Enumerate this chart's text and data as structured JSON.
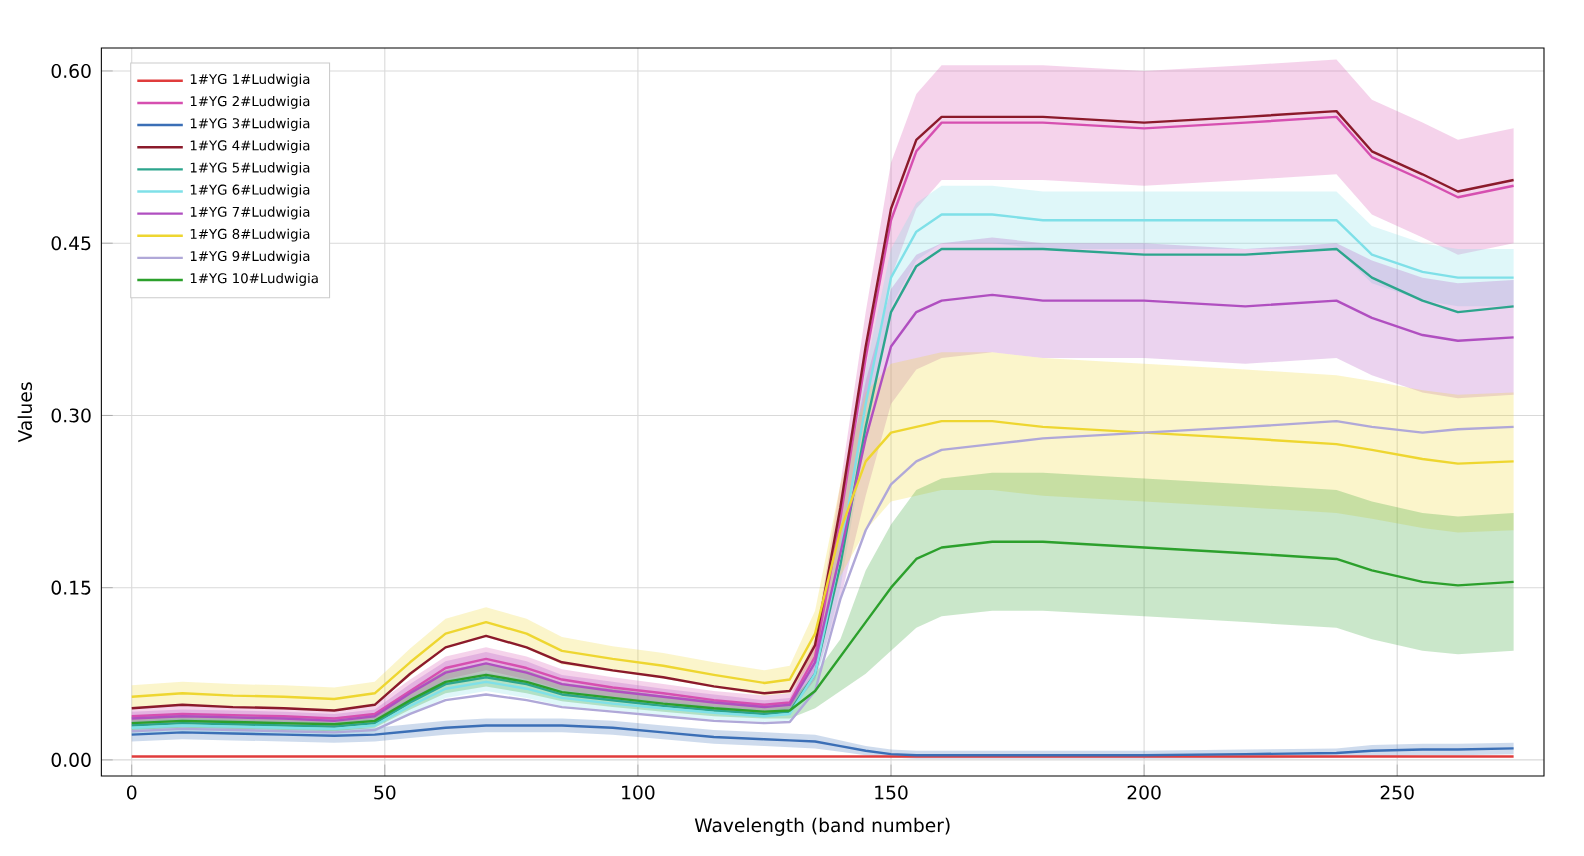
{
  "chart_data": {
    "type": "line",
    "xlabel": "Wavelength (band number)",
    "ylabel": "Values",
    "x": [
      0,
      10,
      20,
      30,
      40,
      48,
      55,
      62,
      70,
      78,
      85,
      95,
      105,
      115,
      125,
      130,
      135,
      140,
      145,
      150,
      155,
      160,
      170,
      180,
      200,
      220,
      238,
      245,
      255,
      262,
      273
    ],
    "xlim": [
      -6,
      279
    ],
    "ylim": [
      -0.014,
      0.62
    ],
    "xticks": [
      0,
      50,
      100,
      150,
      200,
      250
    ],
    "yticks": [
      {
        "value": 0,
        "label": "0.00"
      },
      {
        "value": 0.15,
        "label": "0.15"
      },
      {
        "value": 0.3,
        "label": "0.30"
      },
      {
        "value": 0.45,
        "label": "0.45"
      },
      {
        "value": 0.6,
        "label": "0.60"
      }
    ],
    "grid": true,
    "legend": "top left",
    "line_style": "solid",
    "marker": "none",
    "series": [
      {
        "name": "1#YG 1#Ludwigia",
        "color": "#e03c3c",
        "values": [
          0.003,
          0.003,
          0.003,
          0.003,
          0.003,
          0.003,
          0.003,
          0.003,
          0.003,
          0.003,
          0.003,
          0.003,
          0.003,
          0.003,
          0.003,
          0.003,
          0.003,
          0.003,
          0.003,
          0.003,
          0.003,
          0.003,
          0.003,
          0.003,
          0.003,
          0.003,
          0.003,
          0.003,
          0.003,
          0.003,
          0.003
        ]
      },
      {
        "name": "1#YG 2#Ludwigia",
        "color": "#d64fb0",
        "values": [
          0.038,
          0.04,
          0.039,
          0.038,
          0.036,
          0.04,
          0.06,
          0.08,
          0.088,
          0.08,
          0.07,
          0.063,
          0.058,
          0.052,
          0.048,
          0.05,
          0.09,
          0.21,
          0.35,
          0.47,
          0.53,
          0.555,
          0.555,
          0.555,
          0.55,
          0.555,
          0.56,
          0.525,
          0.505,
          0.49,
          0.5
        ],
        "lower": [
          0.03,
          0.032,
          0.031,
          0.03,
          0.028,
          0.032,
          0.05,
          0.07,
          0.078,
          0.07,
          0.061,
          0.054,
          0.05,
          0.044,
          0.04,
          0.042,
          0.075,
          0.18,
          0.31,
          0.42,
          0.48,
          0.505,
          0.505,
          0.505,
          0.5,
          0.505,
          0.51,
          0.475,
          0.455,
          0.44,
          0.45
        ],
        "upper": [
          0.046,
          0.048,
          0.047,
          0.046,
          0.044,
          0.048,
          0.07,
          0.09,
          0.098,
          0.09,
          0.079,
          0.072,
          0.066,
          0.06,
          0.056,
          0.058,
          0.105,
          0.24,
          0.39,
          0.52,
          0.58,
          0.605,
          0.605,
          0.605,
          0.6,
          0.605,
          0.61,
          0.575,
          0.555,
          0.54,
          0.55
        ]
      },
      {
        "name": "1#YG 3#Ludwigia",
        "color": "#3b6fb6",
        "values": [
          0.022,
          0.024,
          0.023,
          0.022,
          0.021,
          0.022,
          0.025,
          0.028,
          0.03,
          0.03,
          0.03,
          0.028,
          0.024,
          0.02,
          0.018,
          0.017,
          0.016,
          0.012,
          0.008,
          0.005,
          0.004,
          0.004,
          0.004,
          0.004,
          0.004,
          0.005,
          0.006,
          0.008,
          0.009,
          0.009,
          0.01
        ],
        "lower": [
          0.016,
          0.018,
          0.017,
          0.016,
          0.015,
          0.016,
          0.019,
          0.022,
          0.024,
          0.024,
          0.024,
          0.022,
          0.018,
          0.014,
          0.012,
          0.011,
          0.01,
          0.007,
          0.004,
          0.002,
          0.001,
          0.001,
          0.001,
          0.001,
          0.001,
          0.001,
          0.002,
          0.003,
          0.004,
          0.004,
          0.005
        ],
        "upper": [
          0.028,
          0.03,
          0.029,
          0.028,
          0.027,
          0.028,
          0.031,
          0.034,
          0.036,
          0.036,
          0.036,
          0.034,
          0.03,
          0.026,
          0.024,
          0.023,
          0.022,
          0.017,
          0.012,
          0.009,
          0.008,
          0.008,
          0.008,
          0.008,
          0.008,
          0.009,
          0.01,
          0.013,
          0.014,
          0.014,
          0.015
        ]
      },
      {
        "name": "1#YG 4#Ludwigia",
        "color": "#8b1a2b",
        "values": [
          0.045,
          0.048,
          0.046,
          0.045,
          0.043,
          0.048,
          0.075,
          0.098,
          0.108,
          0.098,
          0.085,
          0.078,
          0.072,
          0.064,
          0.058,
          0.06,
          0.1,
          0.22,
          0.36,
          0.48,
          0.54,
          0.56,
          0.56,
          0.56,
          0.555,
          0.56,
          0.565,
          0.53,
          0.51,
          0.495,
          0.505
        ]
      },
      {
        "name": "1#YG 5#Ludwigia",
        "color": "#2ca58d",
        "values": [
          0.03,
          0.032,
          0.031,
          0.03,
          0.029,
          0.032,
          0.05,
          0.066,
          0.072,
          0.066,
          0.057,
          0.052,
          0.047,
          0.043,
          0.04,
          0.042,
          0.075,
          0.17,
          0.29,
          0.39,
          0.43,
          0.445,
          0.445,
          0.445,
          0.44,
          0.44,
          0.445,
          0.42,
          0.4,
          0.39,
          0.395
        ]
      },
      {
        "name": "1#YG 6#Ludwigia",
        "color": "#7fe0e8",
        "values": [
          0.028,
          0.03,
          0.029,
          0.028,
          0.027,
          0.03,
          0.047,
          0.062,
          0.068,
          0.062,
          0.054,
          0.049,
          0.045,
          0.041,
          0.038,
          0.04,
          0.075,
          0.18,
          0.31,
          0.42,
          0.46,
          0.475,
          0.475,
          0.47,
          0.47,
          0.47,
          0.47,
          0.44,
          0.425,
          0.42,
          0.42
        ],
        "lower": [
          0.022,
          0.024,
          0.023,
          0.022,
          0.021,
          0.024,
          0.04,
          0.054,
          0.06,
          0.054,
          0.047,
          0.043,
          0.039,
          0.035,
          0.033,
          0.034,
          0.06,
          0.15,
          0.28,
          0.395,
          0.435,
          0.45,
          0.45,
          0.445,
          0.445,
          0.445,
          0.445,
          0.415,
          0.4,
          0.395,
          0.395
        ],
        "upper": [
          0.034,
          0.036,
          0.035,
          0.034,
          0.033,
          0.036,
          0.054,
          0.07,
          0.076,
          0.07,
          0.061,
          0.055,
          0.051,
          0.047,
          0.043,
          0.046,
          0.09,
          0.21,
          0.34,
          0.445,
          0.485,
          0.5,
          0.5,
          0.495,
          0.495,
          0.495,
          0.495,
          0.465,
          0.45,
          0.445,
          0.445
        ]
      },
      {
        "name": "1#YG 7#Ludwigia",
        "color": "#b04fc0",
        "values": [
          0.036,
          0.038,
          0.037,
          0.036,
          0.034,
          0.038,
          0.058,
          0.076,
          0.084,
          0.076,
          0.066,
          0.06,
          0.055,
          0.05,
          0.046,
          0.048,
          0.085,
          0.18,
          0.28,
          0.36,
          0.39,
          0.4,
          0.405,
          0.4,
          0.4,
          0.395,
          0.4,
          0.385,
          0.37,
          0.365,
          0.368
        ],
        "lower": [
          0.03,
          0.032,
          0.031,
          0.03,
          0.028,
          0.032,
          0.05,
          0.066,
          0.074,
          0.066,
          0.058,
          0.052,
          0.048,
          0.043,
          0.04,
          0.042,
          0.07,
          0.14,
          0.23,
          0.31,
          0.34,
          0.35,
          0.355,
          0.35,
          0.35,
          0.345,
          0.35,
          0.335,
          0.32,
          0.315,
          0.318
        ],
        "upper": [
          0.042,
          0.044,
          0.043,
          0.042,
          0.04,
          0.044,
          0.066,
          0.086,
          0.094,
          0.086,
          0.074,
          0.068,
          0.062,
          0.057,
          0.052,
          0.054,
          0.1,
          0.22,
          0.33,
          0.41,
          0.44,
          0.45,
          0.455,
          0.45,
          0.45,
          0.445,
          0.45,
          0.435,
          0.42,
          0.415,
          0.418
        ]
      },
      {
        "name": "1#YG 8#Ludwigia",
        "color": "#eed630",
        "values": [
          0.055,
          0.058,
          0.056,
          0.055,
          0.053,
          0.058,
          0.085,
          0.11,
          0.12,
          0.11,
          0.095,
          0.088,
          0.082,
          0.074,
          0.067,
          0.07,
          0.11,
          0.2,
          0.26,
          0.285,
          0.29,
          0.295,
          0.295,
          0.29,
          0.285,
          0.28,
          0.275,
          0.27,
          0.262,
          0.258,
          0.26
        ],
        "lower": [
          0.045,
          0.048,
          0.046,
          0.045,
          0.043,
          0.048,
          0.073,
          0.097,
          0.107,
          0.097,
          0.083,
          0.077,
          0.071,
          0.063,
          0.056,
          0.058,
          0.09,
          0.16,
          0.2,
          0.225,
          0.23,
          0.235,
          0.235,
          0.23,
          0.225,
          0.22,
          0.215,
          0.21,
          0.202,
          0.198,
          0.2
        ],
        "upper": [
          0.065,
          0.068,
          0.066,
          0.065,
          0.063,
          0.068,
          0.097,
          0.123,
          0.133,
          0.123,
          0.107,
          0.099,
          0.093,
          0.085,
          0.078,
          0.082,
          0.13,
          0.24,
          0.32,
          0.345,
          0.35,
          0.355,
          0.355,
          0.35,
          0.345,
          0.34,
          0.335,
          0.33,
          0.322,
          0.318,
          0.32
        ]
      },
      {
        "name": "1#YG 9#Ludwigia",
        "color": "#b0a8d8",
        "values": [
          0.025,
          0.027,
          0.026,
          0.025,
          0.024,
          0.026,
          0.04,
          0.052,
          0.057,
          0.052,
          0.046,
          0.042,
          0.038,
          0.034,
          0.032,
          0.033,
          0.06,
          0.14,
          0.2,
          0.24,
          0.26,
          0.27,
          0.275,
          0.28,
          0.285,
          0.29,
          0.295,
          0.29,
          0.285,
          0.288,
          0.29
        ]
      },
      {
        "name": "1#YG 10#Ludwigia",
        "color": "#2ca02c",
        "values": [
          0.032,
          0.034,
          0.033,
          0.032,
          0.031,
          0.034,
          0.052,
          0.068,
          0.074,
          0.068,
          0.059,
          0.054,
          0.049,
          0.045,
          0.042,
          0.043,
          0.06,
          0.09,
          0.12,
          0.15,
          0.175,
          0.185,
          0.19,
          0.19,
          0.185,
          0.18,
          0.175,
          0.165,
          0.155,
          0.152,
          0.155
        ],
        "lower": [
          0.026,
          0.028,
          0.027,
          0.026,
          0.025,
          0.028,
          0.044,
          0.058,
          0.064,
          0.058,
          0.051,
          0.046,
          0.042,
          0.038,
          0.036,
          0.036,
          0.045,
          0.06,
          0.075,
          0.095,
          0.115,
          0.125,
          0.13,
          0.13,
          0.125,
          0.12,
          0.115,
          0.105,
          0.095,
          0.092,
          0.095
        ],
        "upper": [
          0.038,
          0.04,
          0.039,
          0.038,
          0.037,
          0.04,
          0.06,
          0.078,
          0.084,
          0.078,
          0.067,
          0.062,
          0.056,
          0.052,
          0.048,
          0.05,
          0.075,
          0.105,
          0.165,
          0.205,
          0.235,
          0.245,
          0.25,
          0.25,
          0.245,
          0.24,
          0.235,
          0.225,
          0.215,
          0.212,
          0.215
        ]
      }
    ]
  }
}
